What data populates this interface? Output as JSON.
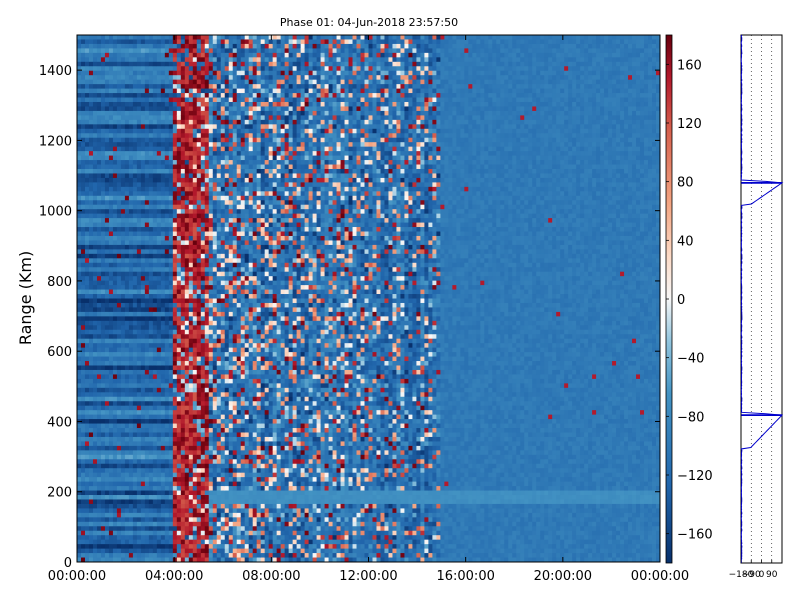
{
  "chart_data": [
    {
      "type": "heatmap",
      "title": "Phase 01: 04-Jun-2018 23:57:50",
      "xlabel": "",
      "ylabel": "Range (Km)",
      "x_range": [
        "00:00:00",
        "00:00:00"
      ],
      "x_ticks": [
        "00:00:00",
        "04:00:00",
        "08:00:00",
        "12:00:00",
        "16:00:00",
        "20:00:00",
        "00:00:00"
      ],
      "ylim": [
        0,
        1500
      ],
      "y_ticks": [
        0,
        200,
        400,
        600,
        800,
        1000,
        1200,
        1400
      ],
      "colorbar": {
        "range": [
          -180,
          180
        ],
        "ticks": [
          -160,
          -120,
          -80,
          -40,
          0,
          40,
          80,
          120,
          160
        ],
        "colormap": "RdBu_r",
        "low_color": "#08306b",
        "mid_color": "#f7f7f7",
        "high_color": "#67000d"
      },
      "regions": [
        {
          "x_start": "00:00:00",
          "x_end": "04:00:00",
          "dominant": "horizontal banded blue, phase -170 to -90"
        },
        {
          "x_start": "04:00:00",
          "x_end": "05:30:00",
          "dominant": "red band, phase +120 to +180"
        },
        {
          "x_start": "05:30:00",
          "x_end": "15:00:00",
          "dominant": "noisy mixed phase, -180 to +180"
        },
        {
          "x_start": "15:00:00",
          "x_end": "00:00:00",
          "dominant": "smooth blue, phase about -100"
        }
      ],
      "features": [
        {
          "type": "faint horizontal band",
          "range_km": 185,
          "x_start": "05:30:00",
          "x_end": "00:00:00"
        }
      ]
    },
    {
      "type": "line",
      "title": "",
      "xlabel": "",
      "ylabel": "",
      "x_ticks": [
        "-180",
        "-90",
        "0",
        "90"
      ],
      "xlim": [
        -180,
        180
      ],
      "ylim": [
        0,
        1500
      ],
      "series_color": "#0000cc",
      "profile_note": "phase profile vs range, mostly near -180 with spikes",
      "values": [
        {
          "range": 0,
          "phase": -178
        },
        {
          "range": 100,
          "phase": -150
        },
        {
          "range": 180,
          "phase": -175
        },
        {
          "range": 300,
          "phase": -178
        },
        {
          "range": 420,
          "phase": 180
        },
        {
          "range": 430,
          "phase": -176
        },
        {
          "range": 500,
          "phase": -178
        },
        {
          "range": 700,
          "phase": -178
        },
        {
          "range": 900,
          "phase": -176
        },
        {
          "range": 1000,
          "phase": -178
        },
        {
          "range": 1080,
          "phase": 180
        },
        {
          "range": 1090,
          "phase": -178
        },
        {
          "range": 1120,
          "phase": -150
        },
        {
          "range": 1200,
          "phase": -175
        },
        {
          "range": 1300,
          "phase": -176
        },
        {
          "range": 1400,
          "phase": -175
        },
        {
          "range": 1500,
          "phase": -178
        }
      ]
    }
  ]
}
